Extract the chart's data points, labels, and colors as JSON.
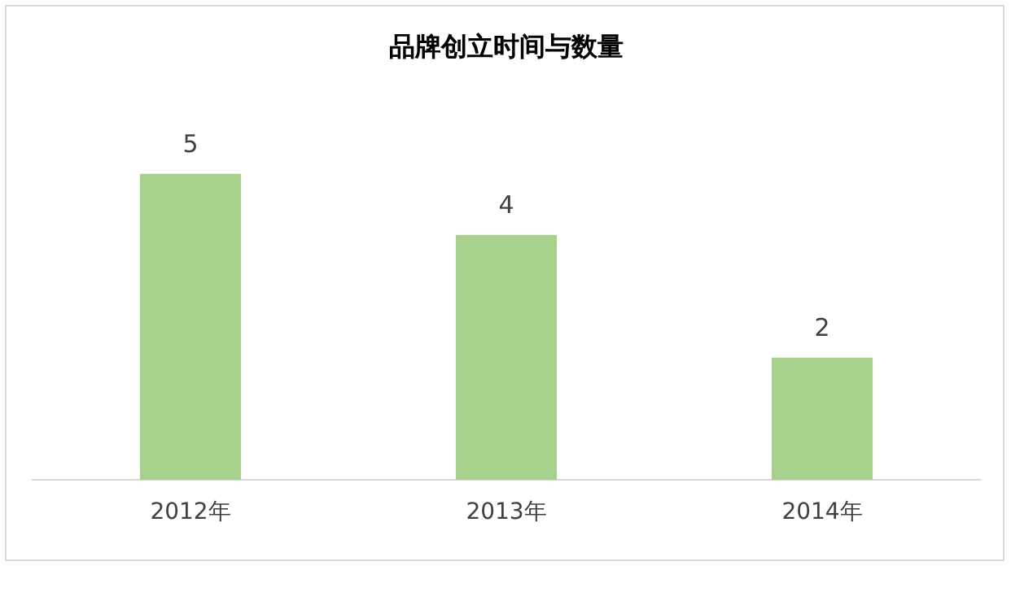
{
  "chart_data": {
    "type": "bar",
    "title": "品牌创立时间与数量",
    "categories": [
      "2012年",
      "2013年",
      "2014年"
    ],
    "values": [
      5,
      4,
      2
    ],
    "color": "#a9d18e",
    "data_labels": true,
    "grid": false,
    "legend": false
  }
}
